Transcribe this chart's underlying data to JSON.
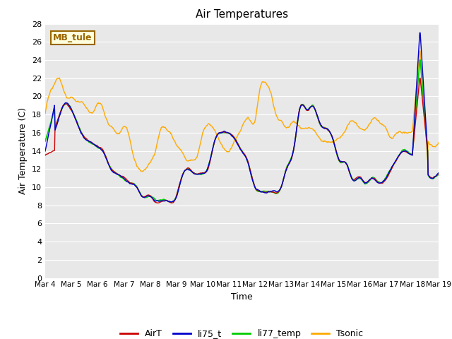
{
  "title": "Air Temperatures",
  "xlabel": "Time",
  "ylabel": "Air Temperature (C)",
  "ylim": [
    0,
    28
  ],
  "yticks": [
    0,
    2,
    4,
    6,
    8,
    10,
    12,
    14,
    16,
    18,
    20,
    22,
    24,
    26,
    28
  ],
  "xtick_labels": [
    "Mar 4",
    "Mar 5",
    "Mar 6",
    "Mar 7",
    "Mar 8",
    "Mar 9",
    "Mar 10",
    "Mar 11",
    "Mar 12",
    "Mar 13",
    "Mar 14",
    "Mar 15",
    "Mar 16",
    "Mar 17",
    "Mar 18",
    "Mar 19"
  ],
  "colors": {
    "AirT": "#cc0000",
    "li75_t": "#0000cc",
    "li77_temp": "#00cc00",
    "Tsonic": "#ffaa00"
  },
  "annotation_text": "MB_tule",
  "annotation_bg": "#ffffdd",
  "annotation_border": "#996600",
  "bg_color": "#e8e8e8",
  "figsize": [
    6.4,
    4.8
  ],
  "dpi": 100
}
